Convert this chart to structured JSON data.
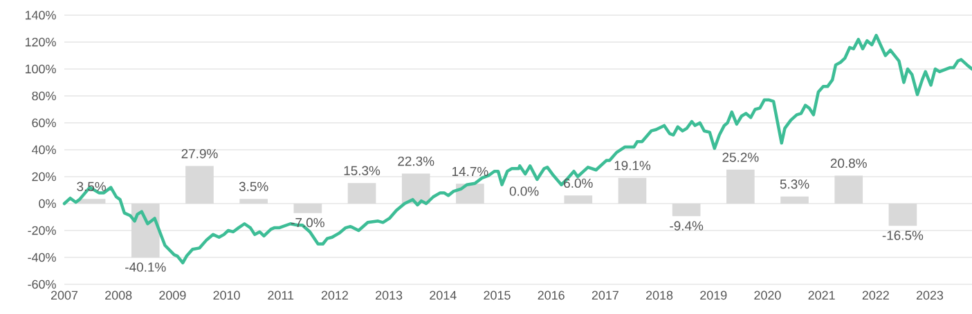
{
  "chart_data": {
    "type": "line",
    "xlim": [
      2007,
      2023.78
    ],
    "xticks": [
      2007,
      2008,
      2009,
      2010,
      2011,
      2012,
      2013,
      2014,
      2015,
      2016,
      2017,
      2018,
      2019,
      2020,
      2021,
      2022,
      2023
    ],
    "ylim": [
      -60,
      140
    ],
    "yticks": [
      {
        "value": -60,
        "label": "-60%"
      },
      {
        "value": -40,
        "label": "-40%"
      },
      {
        "value": -20,
        "label": "-20%"
      },
      {
        "value": 0,
        "label": "0%"
      },
      {
        "value": 20,
        "label": "20%"
      },
      {
        "value": 40,
        "label": "40%"
      },
      {
        "value": 60,
        "label": "60%"
      },
      {
        "value": 80,
        "label": "80%"
      },
      {
        "value": 100,
        "label": "100%"
      },
      {
        "value": 120,
        "label": "120%"
      },
      {
        "value": 140,
        "label": "140%"
      }
    ],
    "grid": "y",
    "series": [
      {
        "type": "bar",
        "color": "#d9d9d9",
        "x": [
          2007.5,
          2008.5,
          2009.5,
          2010.5,
          2011.5,
          2012.5,
          2013.5,
          2014.5,
          2015.5,
          2016.5,
          2017.5,
          2018.5,
          2019.5,
          2020.5,
          2021.5,
          2022.5
        ],
        "values": [
          3.5,
          -40.1,
          27.9,
          3.5,
          -7.0,
          15.3,
          22.3,
          14.7,
          0.0,
          6.0,
          19.1,
          -9.4,
          25.2,
          5.3,
          20.8,
          -16.5
        ],
        "value_labels": [
          "3.5%",
          "-40.1%",
          "27.9%",
          "3.5%",
          "-7.0%",
          "15.3%",
          "22.3%",
          "14.7%",
          "0.0%",
          "6.0%",
          "19.1%",
          "-9.4%",
          "25.2%",
          "5.3%",
          "20.8%",
          "-16.5%"
        ]
      },
      {
        "color": "#3dbd96",
        "x": [
          2007.0,
          2007.11,
          2007.21,
          2007.28,
          2007.47,
          2007.64,
          2007.73,
          2007.86,
          2007.96,
          2008.03,
          2008.11,
          2008.22,
          2008.3,
          2008.35,
          2008.43,
          2008.54,
          2008.67,
          2008.86,
          2009.03,
          2009.09,
          2009.19,
          2009.26,
          2009.37,
          2009.5,
          2009.63,
          2009.75,
          2009.86,
          2009.95,
          2010.03,
          2010.12,
          2010.22,
          2010.33,
          2010.44,
          2010.52,
          2010.61,
          2010.69,
          2010.82,
          2010.88,
          2010.97,
          2011.18,
          2011.31,
          2011.4,
          2011.54,
          2011.69,
          2011.78,
          2011.86,
          2011.95,
          2012.08,
          2012.2,
          2012.29,
          2012.44,
          2012.61,
          2012.8,
          2012.89,
          2013.01,
          2013.14,
          2013.29,
          2013.44,
          2013.53,
          2013.6,
          2013.69,
          2013.82,
          2013.95,
          2014.02,
          2014.1,
          2014.19,
          2014.34,
          2014.44,
          2014.59,
          2014.72,
          2014.85,
          2014.95,
          2015.02,
          2015.09,
          2015.19,
          2015.27,
          2015.4,
          2015.42,
          2015.52,
          2015.61,
          2015.74,
          2015.87,
          2015.93,
          2016.04,
          2016.19,
          2016.29,
          2016.42,
          2016.49,
          2016.68,
          2016.83,
          2017.02,
          2017.08,
          2017.21,
          2017.36,
          2017.53,
          2017.59,
          2017.68,
          2017.85,
          2017.94,
          2018.09,
          2018.19,
          2018.26,
          2018.34,
          2018.43,
          2018.51,
          2018.6,
          2018.66,
          2018.75,
          2018.83,
          2018.93,
          2019.02,
          2019.11,
          2019.2,
          2019.26,
          2019.34,
          2019.43,
          2019.52,
          2019.6,
          2019.69,
          2019.77,
          2019.86,
          2019.94,
          2020.03,
          2020.11,
          2020.26,
          2020.32,
          2020.43,
          2020.54,
          2020.62,
          2020.7,
          2020.77,
          2020.85,
          2020.94,
          2021.03,
          2021.11,
          2021.2,
          2021.26,
          2021.35,
          2021.43,
          2021.52,
          2021.59,
          2021.68,
          2021.76,
          2021.84,
          2021.93,
          2022.01,
          2022.1,
          2022.18,
          2022.27,
          2022.35,
          2022.43,
          2022.52,
          2022.59,
          2022.67,
          2022.77,
          2022.86,
          2022.92,
          2023.02,
          2023.1,
          2023.18,
          2023.37,
          2023.44,
          2023.52,
          2023.58,
          2023.69,
          2023.78
        ],
        "values": [
          0,
          4,
          1,
          3,
          12,
          8,
          8,
          12,
          5,
          3,
          -7,
          -9,
          -13,
          -8,
          -6,
          -15,
          -11,
          -31,
          -38,
          -39,
          -44,
          -39,
          -34,
          -33,
          -27,
          -23,
          -25,
          -23,
          -20,
          -21,
          -18,
          -15,
          -18,
          -23,
          -21,
          -24,
          -19,
          -18,
          -18,
          -15,
          -16,
          -16,
          -21,
          -30,
          -30,
          -26,
          -25,
          -22,
          -18,
          -17,
          -20,
          -14,
          -13,
          -14,
          -11,
          -5,
          0,
          3,
          -1,
          2,
          0,
          5,
          8,
          8,
          6,
          9,
          11,
          14,
          15,
          19,
          21,
          24,
          24,
          14,
          24,
          26,
          26,
          28,
          22,
          28,
          18,
          26,
          27,
          21,
          14,
          18,
          24,
          20,
          27,
          25,
          32,
          32,
          38,
          42,
          42,
          46,
          46,
          54,
          55,
          58,
          52,
          51,
          57,
          54,
          56,
          61,
          58,
          60,
          54,
          53,
          41,
          51,
          58,
          60,
          68,
          59,
          65,
          67,
          64,
          70,
          71,
          77,
          77,
          76,
          45,
          56,
          62,
          66,
          67,
          73,
          71,
          66,
          83,
          87,
          87,
          92,
          103,
          105,
          108,
          116,
          115,
          122,
          115,
          121,
          118,
          125,
          117,
          110,
          114,
          110,
          106,
          90,
          100,
          96,
          81,
          92,
          98,
          88,
          100,
          98,
          101,
          101,
          106,
          107,
          103,
          100
        ]
      }
    ]
  }
}
